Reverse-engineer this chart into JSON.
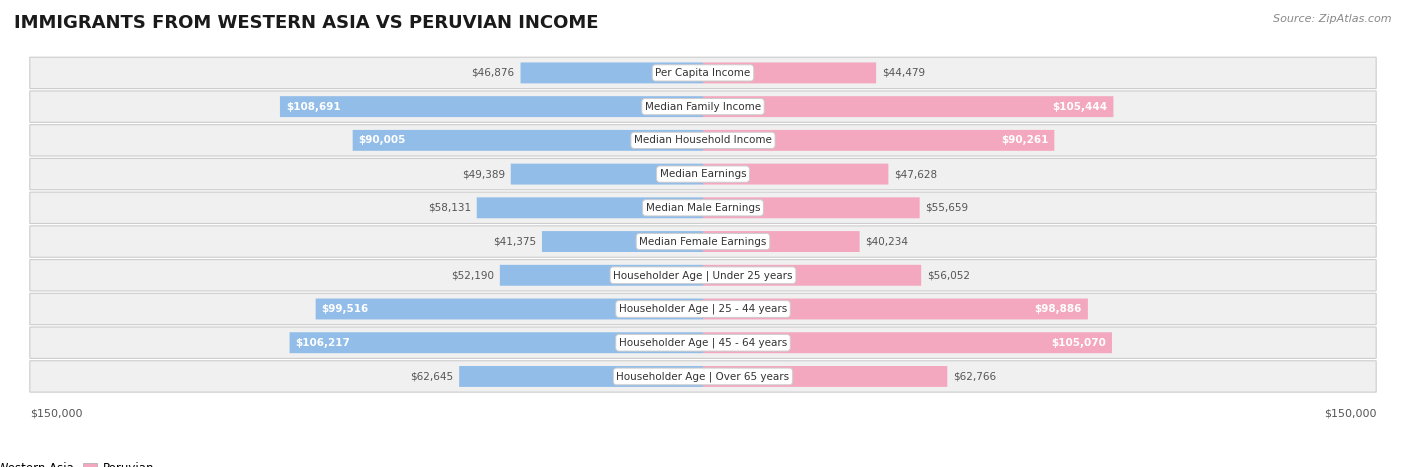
{
  "title": "IMMIGRANTS FROM WESTERN ASIA VS PERUVIAN INCOME",
  "source": "Source: ZipAtlas.com",
  "categories": [
    "Per Capita Income",
    "Median Family Income",
    "Median Household Income",
    "Median Earnings",
    "Median Male Earnings",
    "Median Female Earnings",
    "Householder Age | Under 25 years",
    "Householder Age | 25 - 44 years",
    "Householder Age | 45 - 64 years",
    "Householder Age | Over 65 years"
  ],
  "left_values": [
    46876,
    108691,
    90005,
    49389,
    58131,
    41375,
    52190,
    99516,
    106217,
    62645
  ],
  "right_values": [
    44479,
    105444,
    90261,
    47628,
    55659,
    40234,
    56052,
    98886,
    105070,
    62766
  ],
  "left_labels": [
    "$46,876",
    "$108,691",
    "$90,005",
    "$49,389",
    "$58,131",
    "$41,375",
    "$52,190",
    "$99,516",
    "$106,217",
    "$62,645"
  ],
  "right_labels": [
    "$44,479",
    "$105,444",
    "$90,261",
    "$47,628",
    "$55,659",
    "$40,234",
    "$56,052",
    "$98,886",
    "$105,070",
    "$62,766"
  ],
  "left_color": "#92bde8",
  "right_color": "#f4a8c0",
  "left_color_inner": "#5b9fd6",
  "right_color_inner": "#f07aa0",
  "row_bg_color": "#f0f0f0",
  "row_border_color": "#cccccc",
  "max_value": 150000,
  "legend_left": "Immigrants from Western Asia",
  "legend_right": "Peruvian",
  "xlabel_left": "$150,000",
  "xlabel_right": "$150,000",
  "inside_label_threshold": 65000,
  "title_fontsize": 13,
  "source_fontsize": 8,
  "label_fontsize": 7.5,
  "cat_fontsize": 7.5,
  "axis_label_fontsize": 8
}
